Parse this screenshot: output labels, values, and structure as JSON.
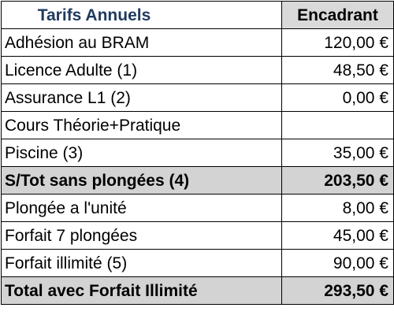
{
  "table": {
    "title": "Tarifs Annuels",
    "column_header": "Encadrant",
    "rows": [
      {
        "label": "Adhésion au BRAM",
        "price": "120,00 €",
        "style": "normal"
      },
      {
        "label": "Licence Adulte (1)",
        "price": "48,50 €",
        "style": "normal"
      },
      {
        "label": "Assurance L1 (2)",
        "price": "0,00 €",
        "style": "normal"
      },
      {
        "label": "Cours Théorie+Pratique",
        "price": "",
        "style": "normal"
      },
      {
        "label": "Piscine (3)",
        "price": "35,00 €",
        "style": "normal"
      },
      {
        "label": "S/Tot sans plongées (4)",
        "price": "203,50 €",
        "style": "subtotal"
      },
      {
        "label": "Plongée a l'unité",
        "price": "8,00 €",
        "style": "normal"
      },
      {
        "label": "Forfait 7 plongées",
        "price": "45,00 €",
        "style": "normal"
      },
      {
        "label": "Forfait illimité (5)",
        "price": "90,00 €",
        "style": "normal"
      },
      {
        "label": "Total avec Forfait Illimité",
        "price": "293,50 €",
        "style": "total"
      }
    ]
  },
  "colors": {
    "title_text": "#1f3a5f",
    "header_fill": "#d9d9d9",
    "summary_fill": "#d3d3d3",
    "border": "#000000"
  }
}
